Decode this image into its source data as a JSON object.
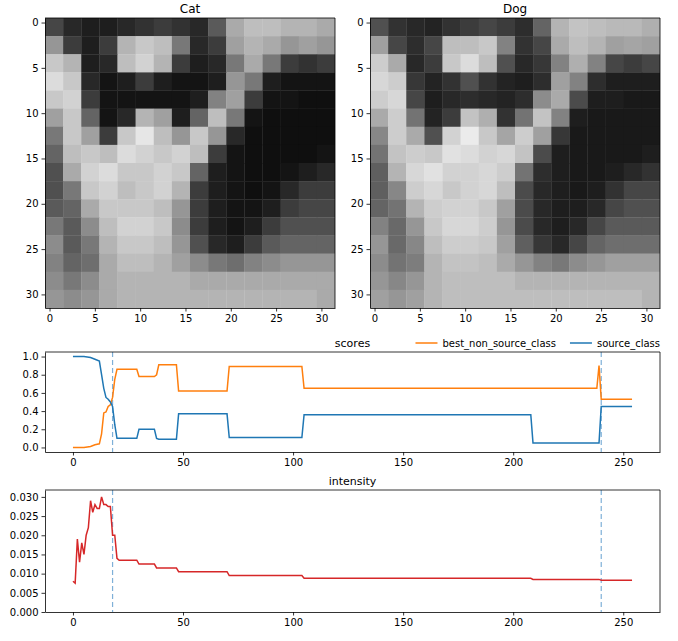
{
  "chart_data": [
    {
      "type": "image",
      "title": "Cat",
      "x": [
        0.5,
        2.5,
        4.5,
        6.5,
        8.5,
        10.5,
        12.5,
        14.5,
        16.5,
        18.5,
        20.5,
        22.5,
        24.5,
        26.5,
        28.5,
        30.5
      ],
      "y": [
        0.5,
        2.5,
        4.5,
        6.5,
        8.5,
        10.5,
        12.5,
        14.5,
        16.5,
        18.5,
        20.5,
        22.5,
        24.5,
        26.5,
        28.5,
        30.5
      ],
      "cells": [
        [
          70,
          40,
          30,
          30,
          40,
          50,
          60,
          50,
          40,
          90,
          170,
          190,
          190,
          180,
          180,
          170
        ],
        [
          150,
          60,
          30,
          60,
          180,
          200,
          190,
          120,
          40,
          60,
          160,
          180,
          170,
          150,
          160,
          150
        ],
        [
          200,
          180,
          30,
          40,
          190,
          210,
          180,
          60,
          30,
          40,
          120,
          170,
          120,
          60,
          50,
          60
        ],
        [
          220,
          200,
          40,
          20,
          30,
          60,
          30,
          20,
          20,
          30,
          150,
          120,
          30,
          20,
          20,
          20
        ],
        [
          200,
          210,
          60,
          20,
          20,
          20,
          20,
          20,
          30,
          130,
          160,
          60,
          20,
          20,
          15,
          15
        ],
        [
          160,
          200,
          100,
          20,
          40,
          180,
          160,
          30,
          100,
          190,
          120,
          20,
          15,
          15,
          15,
          15
        ],
        [
          120,
          200,
          160,
          60,
          200,
          230,
          190,
          150,
          200,
          150,
          40,
          15,
          15,
          15,
          15,
          15
        ],
        [
          100,
          190,
          200,
          190,
          220,
          210,
          200,
          210,
          190,
          60,
          20,
          15,
          15,
          15,
          15,
          20
        ],
        [
          80,
          170,
          210,
          220,
          200,
          200,
          210,
          200,
          100,
          30,
          20,
          15,
          15,
          20,
          30,
          40
        ],
        [
          80,
          120,
          200,
          210,
          190,
          200,
          210,
          180,
          60,
          30,
          20,
          15,
          20,
          40,
          60,
          60
        ],
        [
          90,
          100,
          170,
          200,
          200,
          200,
          190,
          150,
          60,
          30,
          20,
          20,
          30,
          60,
          70,
          70
        ],
        [
          120,
          90,
          140,
          190,
          210,
          210,
          200,
          140,
          60,
          30,
          20,
          30,
          60,
          80,
          80,
          80
        ],
        [
          140,
          90,
          120,
          180,
          200,
          200,
          190,
          150,
          80,
          40,
          30,
          60,
          90,
          100,
          100,
          100
        ],
        [
          130,
          100,
          110,
          170,
          190,
          190,
          180,
          160,
          140,
          120,
          110,
          130,
          140,
          150,
          150,
          150
        ],
        [
          140,
          120,
          140,
          170,
          180,
          180,
          180,
          180,
          170,
          170,
          170,
          170,
          170,
          170,
          170,
          170
        ],
        [
          150,
          140,
          150,
          170,
          180,
          180,
          180,
          180,
          180,
          180,
          180,
          180,
          180,
          180,
          180,
          170
        ]
      ],
      "xlim": [
        -0.5,
        31.5
      ],
      "ylim": [
        31.5,
        -0.5
      ],
      "xticks": [
        0,
        5,
        10,
        15,
        20,
        25,
        30
      ],
      "yticks": [
        0,
        5,
        10,
        15,
        20,
        25,
        30
      ]
    },
    {
      "type": "image",
      "title": "Dog",
      "x": [
        0.5,
        2.5,
        4.5,
        6.5,
        8.5,
        10.5,
        12.5,
        14.5,
        16.5,
        18.5,
        20.5,
        22.5,
        24.5,
        26.5,
        28.5,
        30.5
      ],
      "y": [
        0.5,
        2.5,
        4.5,
        6.5,
        8.5,
        10.5,
        12.5,
        14.5,
        16.5,
        18.5,
        20.5,
        22.5,
        24.5,
        26.5,
        28.5,
        30.5
      ],
      "cells": [
        [
          80,
          50,
          40,
          35,
          50,
          60,
          70,
          60,
          45,
          100,
          180,
          195,
          190,
          185,
          185,
          175
        ],
        [
          160,
          70,
          45,
          70,
          190,
          190,
          200,
          130,
          50,
          70,
          170,
          190,
          180,
          160,
          165,
          160
        ],
        [
          205,
          170,
          40,
          60,
          200,
          220,
          190,
          80,
          40,
          55,
          130,
          175,
          130,
          70,
          60,
          70
        ],
        [
          215,
          205,
          55,
          35,
          50,
          80,
          50,
          35,
          30,
          45,
          160,
          130,
          45,
          30,
          30,
          30
        ],
        [
          205,
          215,
          70,
          30,
          40,
          45,
          40,
          35,
          45,
          140,
          170,
          75,
          30,
          30,
          25,
          25
        ],
        [
          170,
          205,
          115,
          35,
          60,
          195,
          175,
          50,
          115,
          195,
          130,
          30,
          25,
          25,
          25,
          25
        ],
        [
          135,
          205,
          170,
          80,
          210,
          235,
          200,
          165,
          205,
          160,
          55,
          25,
          25,
          25,
          25,
          25
        ],
        [
          115,
          195,
          205,
          200,
          225,
          220,
          210,
          215,
          195,
          75,
          30,
          25,
          25,
          25,
          25,
          30
        ],
        [
          95,
          180,
          215,
          225,
          210,
          210,
          215,
          205,
          115,
          45,
          30,
          25,
          25,
          30,
          40,
          50
        ],
        [
          95,
          135,
          205,
          215,
          200,
          210,
          215,
          190,
          75,
          40,
          30,
          25,
          30,
          50,
          70,
          70
        ],
        [
          100,
          115,
          180,
          205,
          210,
          210,
          200,
          160,
          75,
          40,
          30,
          30,
          40,
          70,
          80,
          80
        ],
        [
          130,
          105,
          150,
          200,
          215,
          215,
          205,
          150,
          75,
          40,
          30,
          40,
          70,
          90,
          90,
          90
        ],
        [
          150,
          105,
          135,
          190,
          205,
          205,
          200,
          160,
          95,
          55,
          40,
          70,
          100,
          110,
          110,
          110
        ],
        [
          140,
          115,
          125,
          180,
          195,
          195,
          190,
          170,
          150,
          130,
          120,
          140,
          150,
          160,
          160,
          160
        ],
        [
          150,
          135,
          150,
          180,
          190,
          190,
          190,
          190,
          180,
          180,
          180,
          180,
          180,
          180,
          180,
          180
        ],
        [
          160,
          150,
          160,
          180,
          190,
          190,
          190,
          190,
          190,
          190,
          190,
          190,
          190,
          190,
          190,
          180
        ]
      ],
      "xlim": [
        -0.5,
        31.5
      ],
      "ylim": [
        31.5,
        -0.5
      ],
      "xticks": [
        0,
        5,
        10,
        15,
        20,
        25,
        30
      ],
      "yticks": [
        0,
        5,
        10,
        15,
        20,
        25,
        30
      ]
    },
    {
      "type": "line",
      "title": "scores",
      "x": [
        0,
        5,
        8,
        10,
        12,
        13,
        14,
        15,
        16,
        17,
        18,
        19,
        20,
        29,
        30,
        37,
        38,
        39,
        47,
        48,
        70,
        71,
        104,
        105,
        208,
        209,
        238,
        239,
        240,
        254
      ],
      "series": [
        {
          "name": "best_non_source_class",
          "color": "#ff7f0e",
          "values": [
            0,
            0,
            0.01,
            0.03,
            0.04,
            0.15,
            0.38,
            0.39,
            0.45,
            0.47,
            0.55,
            0.75,
            0.86,
            0.86,
            0.78,
            0.78,
            0.8,
            0.91,
            0.91,
            0.62,
            0.62,
            0.89,
            0.89,
            0.65,
            0.65,
            0.65,
            0.65,
            0.9,
            0.53,
            0.53
          ]
        },
        {
          "name": "source_class",
          "color": "#1f77b4",
          "values": [
            1.0,
            1.0,
            0.99,
            0.97,
            0.95,
            0.8,
            0.65,
            0.55,
            0.53,
            0.5,
            0.45,
            0.25,
            0.1,
            0.1,
            0.2,
            0.2,
            0.1,
            0.09,
            0.09,
            0.37,
            0.37,
            0.11,
            0.11,
            0.36,
            0.36,
            0.05,
            0.05,
            0.05,
            0.45,
            0.45
          ]
        }
      ],
      "vlines": [
        18,
        240
      ],
      "xlim": [
        -12.7,
        266.7
      ],
      "ylim": [
        -0.05,
        1.05
      ],
      "xticks": [
        0,
        50,
        100,
        150,
        200,
        250
      ],
      "yticks": [
        {
          "value": 0,
          "label": "0.0"
        },
        {
          "value": 0.2,
          "label": "0.2"
        },
        {
          "value": 0.4,
          "label": "0.4"
        },
        {
          "value": 0.6,
          "label": "0.6"
        },
        {
          "value": 0.8,
          "label": "0.8"
        },
        {
          "value": 1.0,
          "label": "1.0"
        }
      ],
      "legend": "top"
    },
    {
      "type": "line",
      "title": "intensity",
      "x": [
        0,
        1,
        2,
        3,
        4,
        5,
        6,
        7,
        8,
        9,
        10,
        11,
        12,
        13,
        14,
        15,
        16,
        17,
        18,
        19,
        20,
        21,
        29,
        30,
        37,
        38,
        47,
        48,
        70,
        71,
        104,
        105,
        208,
        209,
        239,
        240,
        254
      ],
      "series": [
        {
          "color": "#d62728",
          "values": [
            0.008,
            0.0075,
            0.019,
            0.013,
            0.018,
            0.015,
            0.02,
            0.022,
            0.029,
            0.026,
            0.028,
            0.027,
            0.027,
            0.03,
            0.028,
            0.028,
            0.0275,
            0.0275,
            0.02,
            0.02,
            0.014,
            0.0135,
            0.0135,
            0.0125,
            0.0125,
            0.0115,
            0.0115,
            0.0105,
            0.0105,
            0.0095,
            0.0095,
            0.0088,
            0.0088,
            0.0085,
            0.0085,
            0.0083,
            0.0083
          ]
        }
      ],
      "vlines": [
        18,
        240
      ],
      "xlim": [
        -12.7,
        266.7
      ],
      "ylim": [
        0,
        0.0318
      ],
      "xticks": [
        0,
        50,
        100,
        150,
        200,
        250
      ],
      "yticks": [
        {
          "value": 0,
          "label": "0.000"
        },
        {
          "value": 0.005,
          "label": "0.005"
        },
        {
          "value": 0.01,
          "label": "0.010"
        },
        {
          "value": 0.015,
          "label": "0.015"
        },
        {
          "value": 0.02,
          "label": "0.020"
        },
        {
          "value": 0.025,
          "label": "0.025"
        },
        {
          "value": 0.03,
          "label": "0.030"
        }
      ]
    }
  ]
}
